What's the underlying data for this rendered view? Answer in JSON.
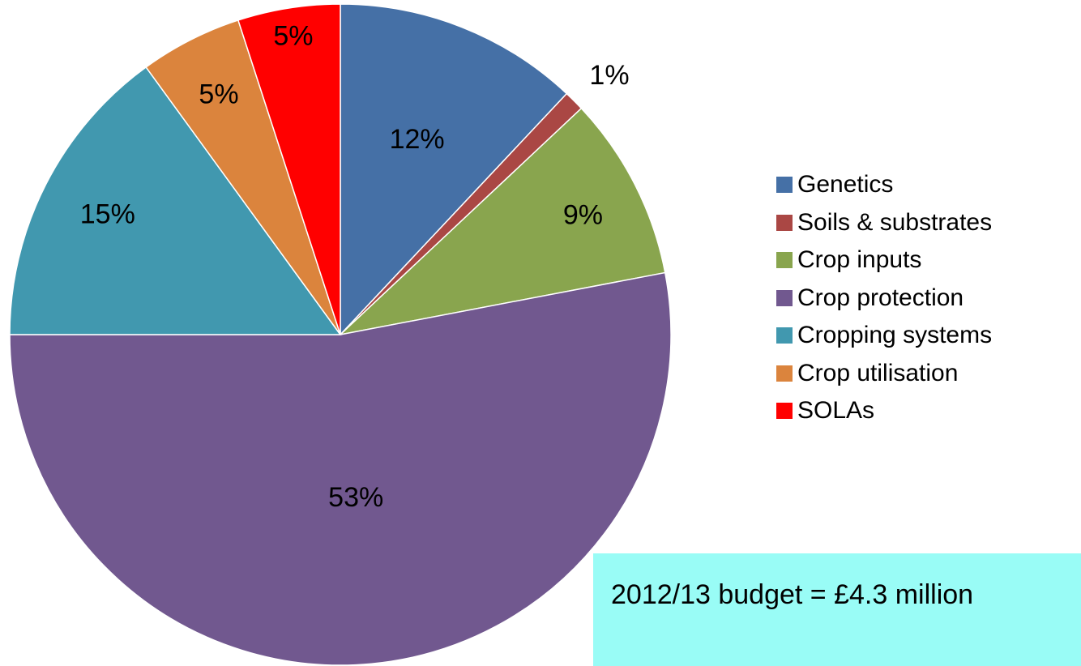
{
  "chart_data": {
    "type": "pie",
    "title": "",
    "slices": [
      {
        "name": "Genetics",
        "value": 12,
        "label": "12%",
        "color": "#4570a6"
      },
      {
        "name": "Soils & substrates",
        "value": 1,
        "label": "1%",
        "color": "#aa4744"
      },
      {
        "name": "Crop inputs",
        "value": 9,
        "label": "9%",
        "color": "#89a54e"
      },
      {
        "name": "Crop protection",
        "value": 53,
        "label": "53%",
        "color": "#71588f"
      },
      {
        "name": "Cropping systems",
        "value": 15,
        "label": "15%",
        "color": "#4198af"
      },
      {
        "name": "Crop utilisation",
        "value": 5,
        "label": "5%",
        "color": "#db843d"
      },
      {
        "name": "SOLAs",
        "value": 5,
        "label": "5%",
        "color": "#ff0000"
      }
    ],
    "legend_position": "right"
  },
  "annotation": {
    "budget_text": "2012/13 budget = £4.3 million",
    "background_color": "#99fcf6"
  }
}
